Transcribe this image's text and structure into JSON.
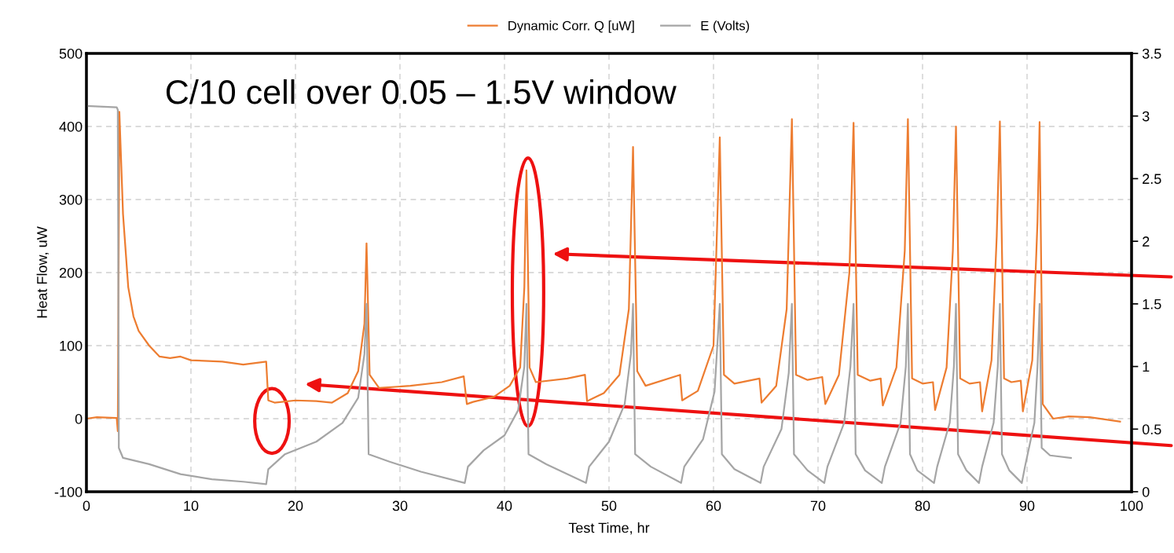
{
  "chart_data": {
    "type": "line",
    "xlabel": "Test Time, hr",
    "ylabel": "Heat Flow, uW",
    "annotations": [
      "C/10 cell over 0.05 – 1.5V window"
    ],
    "xlim": [
      0,
      100
    ],
    "xticks": [
      0,
      10,
      20,
      30,
      40,
      50,
      60,
      70,
      80,
      90,
      100
    ],
    "ylim": [
      -100,
      500
    ],
    "yticks": [
      -100,
      0,
      100,
      200,
      300,
      400,
      500
    ],
    "y2lim": [
      0,
      3.5
    ],
    "y2ticks": [
      0,
      0.5,
      1,
      1.5,
      2,
      2.5,
      3,
      3.5
    ],
    "grid": true,
    "legend": "top",
    "line_style": "solid",
    "series": [
      {
        "name": "Dynamic Corr. Q [uW]",
        "color": "#ed7d31",
        "x": [
          0,
          1,
          2.9,
          3.0,
          3.15,
          3.5,
          4,
          4.5,
          5,
          6,
          7,
          8,
          9,
          10,
          13,
          15,
          17.2,
          17.4,
          18,
          20,
          22,
          23.5,
          25,
          26,
          26.6,
          26.8,
          27.1,
          28,
          31,
          34,
          36.1,
          36.4,
          37,
          39,
          40.5,
          41.5,
          41.9,
          42.1,
          42.4,
          43,
          46,
          47.7,
          47.9,
          49.5,
          51,
          51.9,
          52.3,
          52.7,
          53.5,
          56.8,
          57.0,
          58.5,
          60.0,
          60.6,
          61.0,
          62,
          64.4,
          64.6,
          66,
          67.0,
          67.5,
          67.9,
          69,
          70.4,
          70.7,
          72,
          73.0,
          73.4,
          73.8,
          75,
          76.0,
          76.2,
          77.5,
          78.3,
          78.6,
          79.0,
          80,
          81.0,
          81.2,
          82.3,
          82.9,
          83.2,
          83.6,
          84.5,
          85.5,
          85.7,
          86.6,
          87.1,
          87.4,
          87.8,
          88.5,
          89.4,
          89.6,
          90.5,
          91.0,
          91.2,
          91.5,
          92.5,
          94,
          96,
          98.9
        ],
        "values": [
          0,
          2,
          1,
          -17,
          420,
          280,
          180,
          140,
          120,
          100,
          85,
          83,
          85,
          80,
          78,
          74,
          78,
          25,
          22,
          25,
          24,
          22,
          35,
          65,
          130,
          240,
          60,
          42,
          45,
          50,
          58,
          20,
          23,
          30,
          45,
          70,
          180,
          340,
          70,
          50,
          55,
          60,
          24,
          35,
          60,
          150,
          372,
          65,
          45,
          60,
          25,
          38,
          100,
          385,
          60,
          48,
          55,
          22,
          45,
          150,
          410,
          60,
          53,
          57,
          20,
          60,
          200,
          405,
          60,
          52,
          55,
          18,
          70,
          230,
          410,
          55,
          48,
          50,
          12,
          70,
          230,
          400,
          55,
          48,
          50,
          10,
          80,
          250,
          407,
          55,
          50,
          52,
          10,
          80,
          270,
          406,
          20,
          0,
          3,
          2,
          -4
        ]
      },
      {
        "name": "E (Volts)",
        "color": "#a5a5a5",
        "axis": "y2",
        "x": [
          0,
          2.9,
          3.0,
          3.1,
          3.5,
          6,
          9,
          12,
          15,
          17.2,
          17.4,
          19,
          22,
          24.5,
          26,
          26.6,
          26.8,
          27.0,
          29,
          32,
          36.2,
          36.5,
          38,
          40,
          41.3,
          41.9,
          42.1,
          42.3,
          44,
          47.8,
          48.1,
          50,
          51.5,
          52.1,
          52.3,
          52.5,
          54,
          56.9,
          57.2,
          59,
          60.1,
          60.6,
          60.8,
          62,
          64.5,
          64.8,
          66.5,
          67.2,
          67.5,
          67.7,
          69,
          70.6,
          70.9,
          72.5,
          73.1,
          73.4,
          73.6,
          74.5,
          76.1,
          76.4,
          77.9,
          78.4,
          78.6,
          78.8,
          79.5,
          81.1,
          81.4,
          82.6,
          83.0,
          83.2,
          83.4,
          84.2,
          85.4,
          85.7,
          86.8,
          87.2,
          87.4,
          87.6,
          88.3,
          89.5,
          89.8,
          90.7,
          91.0,
          91.2,
          91.4,
          92.2,
          94.2
        ],
        "values": [
          3.08,
          3.07,
          3.05,
          0.35,
          0.27,
          0.22,
          0.14,
          0.1,
          0.08,
          0.06,
          0.18,
          0.3,
          0.4,
          0.55,
          0.75,
          1.1,
          1.5,
          0.3,
          0.24,
          0.16,
          0.07,
          0.2,
          0.33,
          0.45,
          0.65,
          1.0,
          1.5,
          0.3,
          0.22,
          0.07,
          0.2,
          0.4,
          0.7,
          1.1,
          1.5,
          0.3,
          0.2,
          0.07,
          0.2,
          0.42,
          0.8,
          1.5,
          0.3,
          0.18,
          0.07,
          0.2,
          0.5,
          0.95,
          1.5,
          0.3,
          0.17,
          0.07,
          0.2,
          0.55,
          1.0,
          1.5,
          0.3,
          0.17,
          0.07,
          0.2,
          0.55,
          1.0,
          1.5,
          0.3,
          0.17,
          0.07,
          0.2,
          0.55,
          1.0,
          1.5,
          0.3,
          0.17,
          0.07,
          0.2,
          0.55,
          1.0,
          1.5,
          0.3,
          0.17,
          0.07,
          0.2,
          0.55,
          1.0,
          1.5,
          0.35,
          0.29,
          0.27
        ]
      }
    ]
  }
}
